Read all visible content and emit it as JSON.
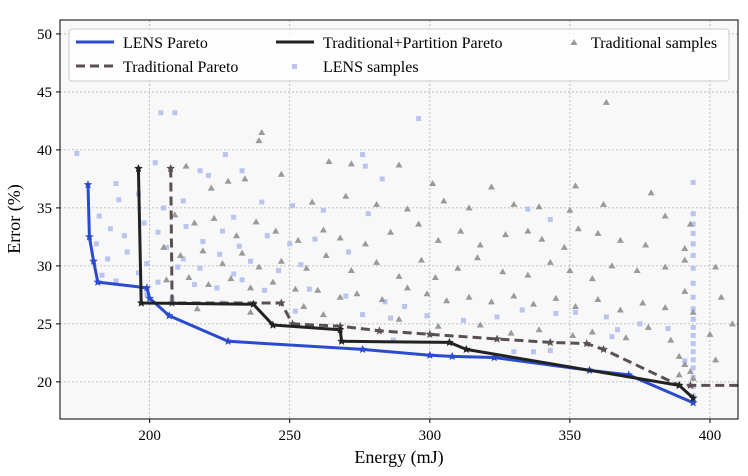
{
  "chart_data": {
    "type": "scatter",
    "title": "",
    "xlabel": "Energy (mJ)",
    "ylabel": "Error (%)",
    "xlim": [
      168,
      410
    ],
    "ylim": [
      16.8,
      51.2
    ],
    "xticks": [
      200,
      250,
      300,
      350,
      400
    ],
    "yticks": [
      20,
      25,
      30,
      35,
      40,
      45,
      50
    ],
    "grid": true,
    "legend_placement": "top",
    "colors": {
      "lens": "#2a4bd0",
      "traditional_pareto": "#5b4f55",
      "trad_partition": "#222222",
      "lens_samples": "#b9c4f0",
      "trad_samples": "#9a9a9a",
      "plot_bg": "#f8f8f8"
    },
    "legend": {
      "lens_pareto": "LENS Pareto",
      "traditional_pareto": "Traditional Pareto",
      "trad_partition_pareto": "Traditional+Partition Pareto",
      "lens_samples": "LENS samples",
      "traditional_samples": "Traditional samples"
    },
    "series": [
      {
        "name": "LENS Pareto",
        "style": "solid-line-star",
        "color": "#2a4bd0",
        "points": [
          [
            178,
            37.0
          ],
          [
            178.5,
            32.5
          ],
          [
            180,
            30.4
          ],
          [
            181.5,
            28.6
          ],
          [
            199,
            28.1
          ],
          [
            200,
            27.2
          ],
          [
            207,
            25.7
          ],
          [
            228,
            23.5
          ],
          [
            276,
            22.8
          ],
          [
            300,
            22.3
          ],
          [
            308,
            22.2
          ],
          [
            323,
            22.1
          ],
          [
            357,
            21.0
          ],
          [
            371,
            20.6
          ],
          [
            394,
            18.2
          ]
        ]
      },
      {
        "name": "Traditional Pareto",
        "style": "dashed-line-star",
        "color": "#5b4f55",
        "points": [
          [
            207.5,
            38.4
          ],
          [
            208,
            26.8
          ],
          [
            247,
            26.8
          ],
          [
            251,
            25.0
          ],
          [
            268,
            24.8
          ],
          [
            282,
            24.4
          ],
          [
            300,
            24.1
          ],
          [
            324,
            23.7
          ],
          [
            343,
            23.4
          ],
          [
            356,
            23.3
          ],
          [
            362,
            22.8
          ],
          [
            389,
            19.7
          ],
          [
            393,
            19.7
          ],
          [
            410,
            19.7
          ]
        ]
      },
      {
        "name": "Traditional+Partition Pareto",
        "style": "solid-line-star",
        "color": "#222222",
        "points": [
          [
            196,
            38.4
          ],
          [
            197,
            26.8
          ],
          [
            237,
            26.7
          ],
          [
            244,
            24.9
          ],
          [
            268,
            24.5
          ],
          [
            268.5,
            23.5
          ],
          [
            307,
            23.4
          ],
          [
            313,
            22.8
          ],
          [
            389,
            19.7
          ],
          [
            394,
            18.6
          ]
        ]
      },
      {
        "name": "LENS samples",
        "style": "square-marker",
        "color": "#b9c4f0",
        "points": [
          [
            204,
            43.2
          ],
          [
            209,
            43.2
          ],
          [
            296,
            42.7
          ],
          [
            174,
            39.7
          ],
          [
            188,
            37.1
          ],
          [
            202,
            38.9
          ],
          [
            218,
            38.2
          ],
          [
            227,
            39.6
          ],
          [
            233,
            38.2
          ],
          [
            276,
            39.6
          ],
          [
            277,
            38.6
          ],
          [
            283,
            37.5
          ],
          [
            189,
            35.7
          ],
          [
            196,
            36.2
          ],
          [
            205,
            35.0
          ],
          [
            212,
            35.6
          ],
          [
            221,
            37.8
          ],
          [
            230,
            34.2
          ],
          [
            240,
            35.5
          ],
          [
            251,
            35.2
          ],
          [
            262,
            34.8
          ],
          [
            278,
            34.5
          ],
          [
            335,
            34.9
          ],
          [
            343,
            34.0
          ],
          [
            394,
            37.2
          ],
          [
            182,
            34.3
          ],
          [
            186,
            33.2
          ],
          [
            191,
            32.6
          ],
          [
            198,
            33.7
          ],
          [
            203,
            32.9
          ],
          [
            213,
            33.4
          ],
          [
            219,
            32.1
          ],
          [
            226,
            33.0
          ],
          [
            232,
            31.7
          ],
          [
            242,
            32.6
          ],
          [
            250,
            31.9
          ],
          [
            259,
            32.3
          ],
          [
            271,
            31.2
          ],
          [
            181,
            31.9
          ],
          [
            185,
            30.6
          ],
          [
            192,
            31.2
          ],
          [
            199,
            30.2
          ],
          [
            206,
            31.6
          ],
          [
            212,
            30.6
          ],
          [
            218,
            29.8
          ],
          [
            225,
            31.0
          ],
          [
            230,
            29.3
          ],
          [
            236,
            30.4
          ],
          [
            246,
            29.6
          ],
          [
            254,
            30.1
          ],
          [
            183,
            29.2
          ],
          [
            188,
            28.7
          ],
          [
            196,
            29.4
          ],
          [
            203,
            28.6
          ],
          [
            210,
            29.9
          ],
          [
            216,
            28.4
          ],
          [
            224,
            28.1
          ],
          [
            233,
            28.8
          ],
          [
            241,
            27.9
          ],
          [
            257,
            28.0
          ],
          [
            270,
            27.4
          ],
          [
            284,
            26.9
          ],
          [
            291,
            26.5
          ],
          [
            199,
            27.5
          ],
          [
            208,
            27.2
          ],
          [
            226,
            26.8
          ],
          [
            252,
            26.1
          ],
          [
            276,
            25.8
          ],
          [
            286,
            25.5
          ],
          [
            299,
            25.7
          ],
          [
            312,
            25.3
          ],
          [
            324,
            25.6
          ],
          [
            333,
            26.2
          ],
          [
            345,
            25.9
          ],
          [
            352,
            26.0
          ],
          [
            363,
            25.6
          ],
          [
            375,
            25.0
          ],
          [
            385,
            24.6
          ],
          [
            367,
            24.5
          ],
          [
            343,
            22.7
          ],
          [
            287,
            23.6
          ],
          [
            330,
            22.6
          ],
          [
            337,
            22.6
          ],
          [
            357,
            21.0
          ],
          [
            365,
            23.9
          ],
          [
            394,
            34.5
          ],
          [
            394,
            33.6
          ],
          [
            394,
            32.8
          ],
          [
            394,
            31.9
          ],
          [
            394,
            30.9
          ],
          [
            394,
            29.8
          ],
          [
            394,
            28.5
          ],
          [
            394,
            27.3
          ],
          [
            394,
            26.3
          ],
          [
            394,
            25.4
          ],
          [
            394,
            24.7
          ],
          [
            394,
            24.0
          ],
          [
            394,
            23.3
          ],
          [
            394,
            22.6
          ],
          [
            394,
            21.9
          ],
          [
            394,
            21.2
          ],
          [
            394,
            20.4
          ],
          [
            394,
            19.6
          ],
          [
            394,
            18.8
          ],
          [
            391,
            21.8
          ]
        ]
      },
      {
        "name": "Traditional samples",
        "style": "triangle-marker",
        "color": "#9a9a9a",
        "points": [
          [
            363,
            44.1
          ],
          [
            240,
            41.5
          ],
          [
            239,
            40.8
          ],
          [
            264,
            39.0
          ],
          [
            272,
            38.8
          ],
          [
            289,
            38.7
          ],
          [
            301,
            37.1
          ],
          [
            322,
            36.8
          ],
          [
            352,
            36.9
          ],
          [
            379,
            36.3
          ],
          [
            222,
            36.7
          ],
          [
            228,
            37.3
          ],
          [
            213,
            38.6
          ],
          [
            234,
            37.5
          ],
          [
            247,
            37.9
          ],
          [
            258,
            35.5
          ],
          [
            270,
            36.0
          ],
          [
            281,
            35.3
          ],
          [
            292,
            34.9
          ],
          [
            305,
            35.6
          ],
          [
            314,
            35.0
          ],
          [
            330,
            35.3
          ],
          [
            339,
            35.1
          ],
          [
            350,
            34.8
          ],
          [
            362,
            35.3
          ],
          [
            384,
            34.3
          ],
          [
            393,
            33.6
          ],
          [
            209,
            34.4
          ],
          [
            216,
            33.7
          ],
          [
            223,
            34.1
          ],
          [
            231,
            32.6
          ],
          [
            238,
            33.8
          ],
          [
            245,
            33.0
          ],
          [
            253,
            32.2
          ],
          [
            262,
            33.1
          ],
          [
            268,
            32.4
          ],
          [
            277,
            31.9
          ],
          [
            286,
            32.9
          ],
          [
            296,
            33.6
          ],
          [
            303,
            32.2
          ],
          [
            311,
            33.0
          ],
          [
            318,
            31.8
          ],
          [
            327,
            32.7
          ],
          [
            335,
            33.0
          ],
          [
            340,
            32.3
          ],
          [
            348,
            31.6
          ],
          [
            353,
            33.2
          ],
          [
            360,
            32.8
          ],
          [
            368,
            32.2
          ],
          [
            377,
            31.8
          ],
          [
            391,
            31.5
          ],
          [
            205,
            31.6
          ],
          [
            211,
            30.9
          ],
          [
            219,
            31.3
          ],
          [
            226,
            30.2
          ],
          [
            233,
            31.1
          ],
          [
            239,
            29.9
          ],
          [
            247,
            30.4
          ],
          [
            256,
            29.8
          ],
          [
            263,
            30.9
          ],
          [
            272,
            29.6
          ],
          [
            281,
            30.3
          ],
          [
            289,
            29.1
          ],
          [
            297,
            30.5
          ],
          [
            302,
            29.0
          ],
          [
            310,
            29.8
          ],
          [
            317,
            30.7
          ],
          [
            326,
            29.5
          ],
          [
            335,
            29.2
          ],
          [
            343,
            30.3
          ],
          [
            350,
            29.6
          ],
          [
            358,
            28.9
          ],
          [
            365,
            30.0
          ],
          [
            374,
            29.6
          ],
          [
            384,
            29.9
          ],
          [
            391,
            30.5
          ],
          [
            402,
            29.9
          ],
          [
            206,
            28.8
          ],
          [
            214,
            29.0
          ],
          [
            221,
            28.4
          ],
          [
            229,
            28.9
          ],
          [
            236,
            28.1
          ],
          [
            244,
            28.6
          ],
          [
            252,
            28.0
          ],
          [
            260,
            27.9
          ],
          [
            268,
            27.3
          ],
          [
            274,
            27.6
          ],
          [
            283,
            27.1
          ],
          [
            292,
            28.1
          ],
          [
            299,
            27.6
          ],
          [
            306,
            27.0
          ],
          [
            314,
            27.3
          ],
          [
            322,
            26.9
          ],
          [
            330,
            27.4
          ],
          [
            337,
            26.7
          ],
          [
            345,
            27.2
          ],
          [
            352,
            26.5
          ],
          [
            360,
            27.1
          ],
          [
            368,
            26.2
          ],
          [
            376,
            26.8
          ],
          [
            384,
            26.4
          ],
          [
            391,
            27.8
          ],
          [
            404,
            27.3
          ],
          [
            408,
            25.0
          ],
          [
            217,
            26.3
          ],
          [
            236,
            26.0
          ],
          [
            255,
            26.5
          ],
          [
            262,
            25.8
          ],
          [
            289,
            25.4
          ],
          [
            303,
            24.8
          ],
          [
            318,
            24.9
          ],
          [
            329,
            24.2
          ],
          [
            339,
            24.5
          ],
          [
            351,
            24.0
          ],
          [
            358,
            24.3
          ],
          [
            370,
            23.8
          ],
          [
            378,
            24.7
          ],
          [
            386,
            23.6
          ],
          [
            394,
            26.0
          ],
          [
            400,
            24.1
          ],
          [
            402,
            21.9
          ],
          [
            389,
            22.2
          ],
          [
            391,
            21.5
          ],
          [
            393,
            20.9
          ],
          [
            394,
            20.3
          ],
          [
            389,
            20.6
          ]
        ]
      }
    ]
  }
}
